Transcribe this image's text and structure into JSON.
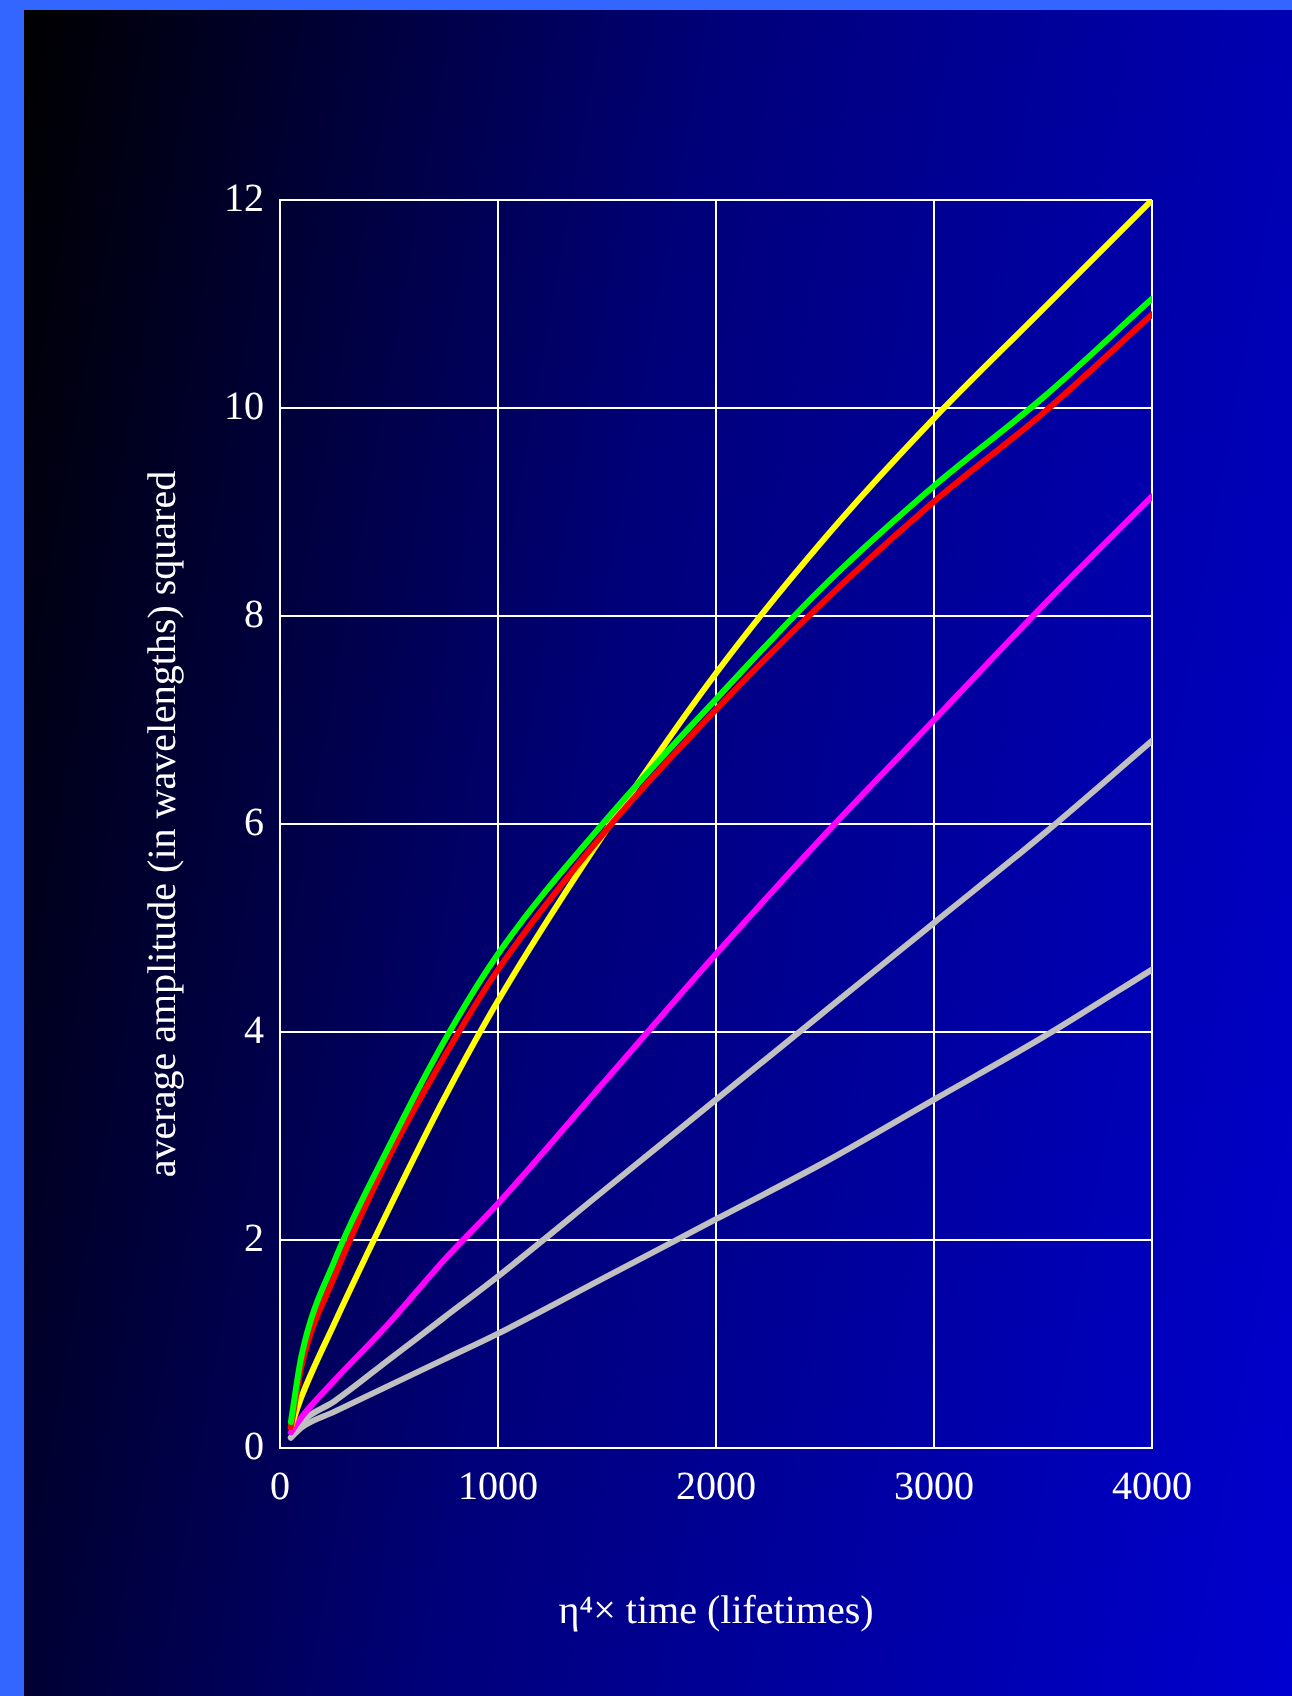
{
  "chart_data": {
    "type": "line",
    "xlabel": "η⁴× time (lifetimes)",
    "ylabel": "average amplitude (in wavelengths) squared",
    "xlim": [
      0,
      4000
    ],
    "xticks": [
      0,
      1000,
      2000,
      3000,
      4000
    ],
    "ylim": [
      0,
      12
    ],
    "yticks": [
      0,
      2,
      4,
      6,
      8,
      10,
      12
    ],
    "grid": true,
    "legend": false,
    "marker": "none",
    "line_style": "solid",
    "x": [
      50,
      100,
      250,
      500,
      750,
      1000,
      1500,
      2000,
      2500,
      3000,
      3500,
      4000
    ],
    "series": [
      {
        "color": "#00ff00",
        "values": [
          0.25,
          0.9,
          1.8,
          2.9,
          3.9,
          4.75,
          6.05,
          7.2,
          8.3,
          9.25,
          10.1,
          11.05
        ]
      },
      {
        "color": "#ff0000",
        "values": [
          0.2,
          0.8,
          1.65,
          2.8,
          3.75,
          4.6,
          5.95,
          7.1,
          8.15,
          9.1,
          9.95,
          10.9
        ]
      },
      {
        "color": "#ffff00",
        "values": [
          0.2,
          0.5,
          1.2,
          2.3,
          3.35,
          4.3,
          5.95,
          7.45,
          8.75,
          9.9,
          10.95,
          12
        ]
      },
      {
        "color": "#ff00ff",
        "values": [
          0.15,
          0.3,
          0.65,
          1.2,
          1.8,
          2.35,
          3.55,
          4.75,
          5.9,
          7.0,
          8.1,
          9.15
        ]
      },
      {
        "color": "#c0c0c0",
        "values": [
          0.1,
          0.25,
          0.45,
          0.85,
          1.25,
          1.65,
          2.5,
          3.35,
          4.2,
          5.05,
          5.9,
          6.8
        ]
      },
      {
        "color": "#c0c0c0",
        "values": [
          0.1,
          0.2,
          0.35,
          0.6,
          0.85,
          1.1,
          1.65,
          2.2,
          2.75,
          3.35,
          3.95,
          4.6
        ]
      }
    ]
  }
}
